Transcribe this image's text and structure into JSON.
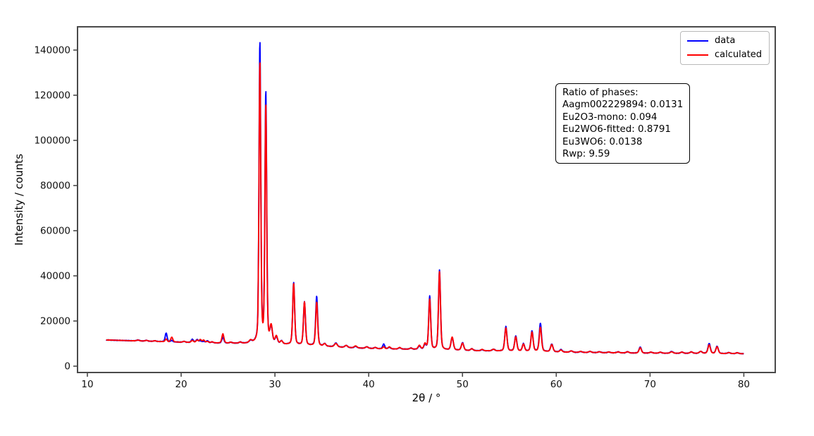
{
  "chart_data": {
    "type": "line",
    "title": "",
    "xlabel": "2θ / °",
    "ylabel": "Intensity / counts",
    "xlim": [
      8.95,
      83.35
    ],
    "ylim": [
      -2810,
      150300
    ],
    "xticks": [
      10,
      20,
      30,
      40,
      50,
      60,
      70,
      80
    ],
    "yticks": [
      0,
      20000,
      40000,
      60000,
      80000,
      100000,
      120000,
      140000
    ],
    "grid": false,
    "legend": {
      "position": "upper right",
      "entries": [
        {
          "label": "data",
          "color": "#0000ff"
        },
        {
          "label": "calculated",
          "color": "#ff0000"
        }
      ]
    },
    "series_model": {
      "description": "Powder XRD Rietveld plot. Two overlapping curves (observed 'data' in blue, 'calculated' fit in red) built from a shared smooth baseline plus pseudo-Voigt peaks. Each peak entry: [two_theta_deg, data_amplitude_counts, calculated_amplitude_counts, fwhm_deg]. Curve value = baseline(x) + sum(amp * peakshape). x range of measured data: 12 to 80 deg.",
      "x_start": 12.0,
      "x_end": 80.0,
      "data_noise_amplitude": 130,
      "baseline": [
        [
          12,
          11600
        ],
        [
          14,
          11350
        ],
        [
          16,
          11100
        ],
        [
          18,
          10850
        ],
        [
          20,
          10600
        ],
        [
          22,
          10400
        ],
        [
          24,
          10200
        ],
        [
          26,
          10050
        ],
        [
          28,
          9950
        ],
        [
          30,
          9650
        ],
        [
          32,
          9350
        ],
        [
          34,
          9050
        ],
        [
          36,
          8650
        ],
        [
          38,
          8150
        ],
        [
          40,
          7850
        ],
        [
          42,
          7650
        ],
        [
          44,
          7500
        ],
        [
          46,
          7350
        ],
        [
          48,
          7150
        ],
        [
          50,
          6950
        ],
        [
          52,
          6800
        ],
        [
          54,
          6700
        ],
        [
          56,
          6600
        ],
        [
          58,
          6500
        ],
        [
          60,
          6300
        ],
        [
          62,
          6100
        ],
        [
          64,
          6000
        ],
        [
          66,
          5900
        ],
        [
          68,
          5800
        ],
        [
          70,
          5750
        ],
        [
          72,
          5700
        ],
        [
          74,
          5650
        ],
        [
          76,
          5650
        ],
        [
          78,
          5550
        ],
        [
          80,
          5500
        ]
      ],
      "peaks": [
        [
          15.4,
          400,
          350,
          0.35
        ],
        [
          16.3,
          350,
          350,
          0.35
        ],
        [
          17.2,
          300,
          300,
          0.3
        ],
        [
          18.4,
          3900,
          1200,
          0.24
        ],
        [
          19.0,
          600,
          2100,
          0.26
        ],
        [
          20.3,
          400,
          400,
          0.3
        ],
        [
          21.2,
          1400,
          900,
          0.28
        ],
        [
          21.7,
          1300,
          1000,
          0.28
        ],
        [
          22.05,
          800,
          1300,
          0.28
        ],
        [
          22.4,
          600,
          1100,
          0.28
        ],
        [
          22.8,
          900,
          600,
          0.28
        ],
        [
          23.3,
          400,
          450,
          0.3
        ],
        [
          24.45,
          2600,
          4100,
          0.26
        ],
        [
          25.3,
          400,
          400,
          0.3
        ],
        [
          26.3,
          500,
          500,
          0.3
        ],
        [
          27.4,
          900,
          1100,
          0.35
        ],
        [
          28.4,
          133000,
          124000,
          0.22
        ],
        [
          29.03,
          111000,
          105000,
          0.22
        ],
        [
          29.6,
          6800,
          7300,
          0.3
        ],
        [
          30.15,
          2800,
          3200,
          0.3
        ],
        [
          30.7,
          1300,
          1300,
          0.3
        ],
        [
          32.0,
          27600,
          27100,
          0.25
        ],
        [
          33.15,
          19100,
          19100,
          0.25
        ],
        [
          34.45,
          21900,
          19300,
          0.25
        ],
        [
          35.3,
          1100,
          1100,
          0.3
        ],
        [
          36.5,
          1700,
          1500,
          0.35
        ],
        [
          37.6,
          900,
          900,
          0.35
        ],
        [
          38.6,
          700,
          900,
          0.35
        ],
        [
          39.8,
          700,
          700,
          0.35
        ],
        [
          40.7,
          500,
          500,
          0.3
        ],
        [
          41.6,
          2100,
          900,
          0.25
        ],
        [
          42.2,
          700,
          900,
          0.3
        ],
        [
          43.3,
          600,
          700,
          0.3
        ],
        [
          44.5,
          500,
          500,
          0.3
        ],
        [
          45.4,
          1400,
          1700,
          0.3
        ],
        [
          46.0,
          1900,
          2400,
          0.28
        ],
        [
          46.5,
          23600,
          22200,
          0.25
        ],
        [
          47.55,
          35300,
          34500,
          0.25
        ],
        [
          48.9,
          5500,
          5700,
          0.3
        ],
        [
          50.0,
          3400,
          3200,
          0.3
        ],
        [
          51.0,
          800,
          800,
          0.3
        ],
        [
          52.1,
          500,
          600,
          0.3
        ],
        [
          53.3,
          700,
          700,
          0.35
        ],
        [
          54.63,
          10800,
          10200,
          0.28
        ],
        [
          55.68,
          6700,
          6300,
          0.28
        ],
        [
          56.5,
          3300,
          3100,
          0.28
        ],
        [
          57.41,
          9000,
          8500,
          0.28
        ],
        [
          58.31,
          12500,
          10700,
          0.28
        ],
        [
          59.52,
          3400,
          3200,
          0.3
        ],
        [
          60.5,
          1100,
          900,
          0.3
        ],
        [
          61.6,
          600,
          600,
          0.35
        ],
        [
          62.6,
          400,
          450,
          0.35
        ],
        [
          63.6,
          500,
          500,
          0.35
        ],
        [
          64.6,
          400,
          400,
          0.35
        ],
        [
          65.6,
          350,
          350,
          0.35
        ],
        [
          66.6,
          450,
          450,
          0.35
        ],
        [
          67.6,
          550,
          550,
          0.35
        ],
        [
          68.95,
          2700,
          2400,
          0.3
        ],
        [
          70.1,
          450,
          450,
          0.35
        ],
        [
          71.1,
          450,
          450,
          0.35
        ],
        [
          72.3,
          800,
          650,
          0.35
        ],
        [
          73.4,
          550,
          550,
          0.35
        ],
        [
          74.4,
          650,
          650,
          0.35
        ],
        [
          75.4,
          850,
          850,
          0.35
        ],
        [
          76.3,
          4400,
          3800,
          0.3
        ],
        [
          77.15,
          3200,
          3000,
          0.3
        ],
        [
          78.4,
          450,
          450,
          0.35
        ],
        [
          79.3,
          400,
          400,
          0.35
        ]
      ]
    }
  },
  "annotation": {
    "lines": [
      "Ratio of phases:",
      "Aagm002229894: 0.0131",
      "Eu2O3-mono: 0.094",
      "Eu2WO6-fitted: 0.8791",
      "Eu3WO6: 0.0138",
      "Rwp: 9.59"
    ]
  },
  "colors": {
    "data_series": "#0000ff",
    "calculated_series": "#ff0000",
    "spine": "#4a4a4a",
    "tick_text": "#111111"
  }
}
